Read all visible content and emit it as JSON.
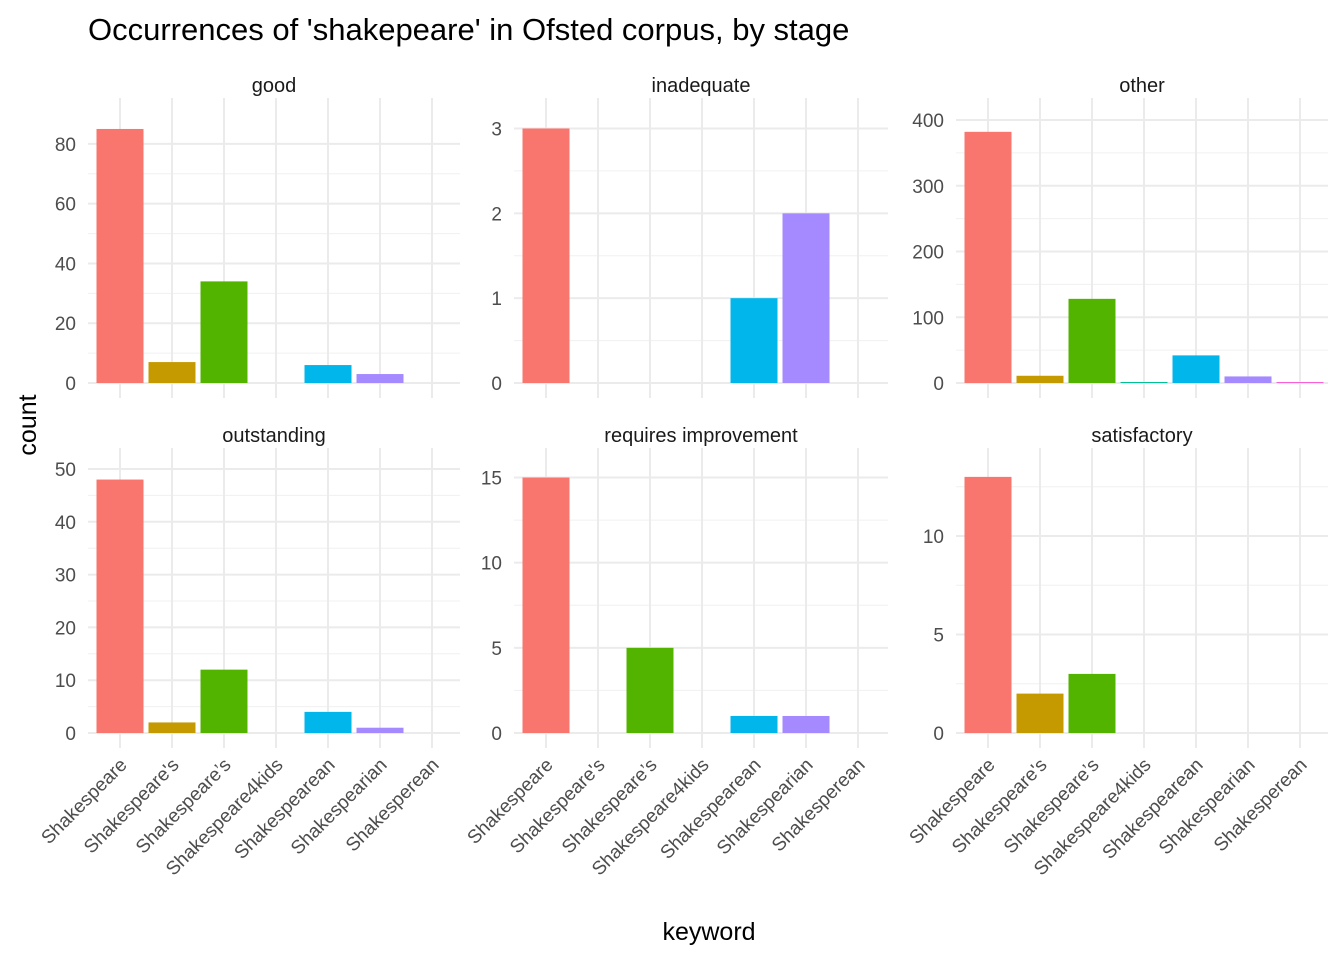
{
  "chart_data": {
    "type": "bar",
    "title": "Occurrences of 'shakepeare' in Ofsted corpus, by stage",
    "xlabel": "keyword",
    "ylabel": "count",
    "grid": true,
    "legend": "none",
    "categories": [
      "Shakespeare",
      "Shakespeare's",
      "Shakespeare’s",
      "Shakespeare4kids",
      "Shakespearean",
      "Shakespearian",
      "Shakesperean"
    ],
    "category_colors": [
      "#F8766D",
      "#C49A00",
      "#53B400",
      "#00C094",
      "#00B6EB",
      "#A58AFF",
      "#FB61D7"
    ],
    "panels": [
      {
        "name": "good",
        "values": [
          85,
          7,
          34,
          0,
          6,
          3,
          0
        ],
        "ylim": [
          0,
          88
        ],
        "yticks": [
          0,
          20,
          40,
          60,
          80
        ]
      },
      {
        "name": "inadequate",
        "values": [
          3,
          0,
          0,
          0,
          1,
          2,
          0
        ],
        "ylim": [
          0,
          3.1
        ],
        "yticks": [
          0,
          1,
          2,
          3
        ]
      },
      {
        "name": "other",
        "values": [
          382,
          11,
          128,
          1,
          42,
          10,
          1
        ],
        "ylim": [
          0,
          400
        ],
        "yticks": [
          0,
          100,
          200,
          300,
          400
        ]
      },
      {
        "name": "outstanding",
        "values": [
          48,
          2,
          12,
          0,
          4,
          1,
          0
        ],
        "ylim": [
          0,
          50
        ],
        "yticks": [
          0,
          10,
          20,
          30,
          40,
          50
        ]
      },
      {
        "name": "requires improvement",
        "values": [
          15,
          0,
          5,
          0,
          1,
          1,
          0
        ],
        "ylim": [
          0,
          15.5
        ],
        "yticks": [
          0,
          5,
          10,
          15
        ]
      },
      {
        "name": "satisfactory",
        "values": [
          13,
          2,
          3,
          0,
          0,
          0,
          0
        ],
        "ylim": [
          0,
          13.4
        ],
        "yticks": [
          0,
          5,
          10
        ]
      }
    ]
  }
}
